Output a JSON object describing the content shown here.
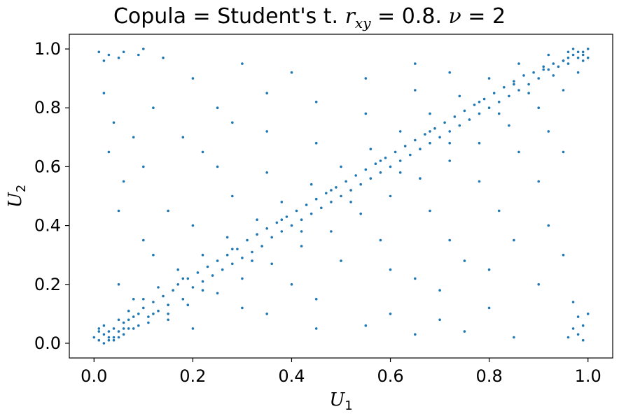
{
  "chart_data": {
    "type": "scatter",
    "title": {
      "prefix": "Copula = Student's t. ",
      "r_symbol": "r",
      "r_subscript": "xy",
      "r_value": " = 0.8. ",
      "nu_symbol": "ν",
      "nu_value": " = 2"
    },
    "xlabel": {
      "symbol": "U",
      "subscript": "1"
    },
    "ylabel": {
      "symbol": "U",
      "subscript": "2"
    },
    "xlim": [
      -0.05,
      1.05
    ],
    "ylim": [
      -0.05,
      1.05
    ],
    "xticks": [
      0.0,
      0.2,
      0.4,
      0.6,
      0.8,
      1.0
    ],
    "yticks": [
      0.0,
      0.2,
      0.4,
      0.6,
      0.8,
      1.0
    ],
    "tick_labels": [
      "0.0",
      "0.2",
      "0.4",
      "0.6",
      "0.8",
      "1.0"
    ],
    "grid": false,
    "marker_color": "#1f77b4",
    "points": [
      [
        0.01,
        0.01
      ],
      [
        0.02,
        0.03
      ],
      [
        0.03,
        0.02
      ],
      [
        0.04,
        0.05
      ],
      [
        0.05,
        0.04
      ],
      [
        0.06,
        0.07
      ],
      [
        0.07,
        0.05
      ],
      [
        0.08,
        0.09
      ],
      [
        0.09,
        0.1
      ],
      [
        0.1,
        0.12
      ],
      [
        0.11,
        0.09
      ],
      [
        0.12,
        0.14
      ],
      [
        0.13,
        0.11
      ],
      [
        0.14,
        0.16
      ],
      [
        0.15,
        0.13
      ],
      [
        0.16,
        0.18
      ],
      [
        0.17,
        0.2
      ],
      [
        0.18,
        0.15
      ],
      [
        0.19,
        0.22
      ],
      [
        0.2,
        0.19
      ],
      [
        0.21,
        0.24
      ],
      [
        0.22,
        0.21
      ],
      [
        0.23,
        0.26
      ],
      [
        0.24,
        0.23
      ],
      [
        0.25,
        0.28
      ],
      [
        0.26,
        0.25
      ],
      [
        0.27,
        0.3
      ],
      [
        0.28,
        0.27
      ],
      [
        0.29,
        0.32
      ],
      [
        0.3,
        0.29
      ],
      [
        0.31,
        0.35
      ],
      [
        0.32,
        0.31
      ],
      [
        0.33,
        0.37
      ],
      [
        0.34,
        0.33
      ],
      [
        0.35,
        0.39
      ],
      [
        0.36,
        0.36
      ],
      [
        0.37,
        0.41
      ],
      [
        0.38,
        0.38
      ],
      [
        0.39,
        0.43
      ],
      [
        0.4,
        0.4
      ],
      [
        0.41,
        0.45
      ],
      [
        0.42,
        0.42
      ],
      [
        0.43,
        0.47
      ],
      [
        0.44,
        0.44
      ],
      [
        0.45,
        0.49
      ],
      [
        0.46,
        0.46
      ],
      [
        0.47,
        0.51
      ],
      [
        0.48,
        0.48
      ],
      [
        0.49,
        0.53
      ],
      [
        0.5,
        0.5
      ],
      [
        0.51,
        0.55
      ],
      [
        0.52,
        0.52
      ],
      [
        0.53,
        0.57
      ],
      [
        0.54,
        0.54
      ],
      [
        0.55,
        0.59
      ],
      [
        0.56,
        0.56
      ],
      [
        0.57,
        0.61
      ],
      [
        0.58,
        0.58
      ],
      [
        0.59,
        0.63
      ],
      [
        0.6,
        0.6
      ],
      [
        0.61,
        0.65
      ],
      [
        0.62,
        0.62
      ],
      [
        0.63,
        0.67
      ],
      [
        0.64,
        0.64
      ],
      [
        0.65,
        0.69
      ],
      [
        0.66,
        0.66
      ],
      [
        0.67,
        0.71
      ],
      [
        0.68,
        0.68
      ],
      [
        0.69,
        0.73
      ],
      [
        0.7,
        0.7
      ],
      [
        0.71,
        0.75
      ],
      [
        0.72,
        0.72
      ],
      [
        0.73,
        0.77
      ],
      [
        0.74,
        0.74
      ],
      [
        0.75,
        0.79
      ],
      [
        0.76,
        0.76
      ],
      [
        0.77,
        0.81
      ],
      [
        0.78,
        0.78
      ],
      [
        0.79,
        0.83
      ],
      [
        0.8,
        0.8
      ],
      [
        0.81,
        0.85
      ],
      [
        0.82,
        0.82
      ],
      [
        0.83,
        0.87
      ],
      [
        0.84,
        0.84
      ],
      [
        0.85,
        0.89
      ],
      [
        0.86,
        0.86
      ],
      [
        0.87,
        0.91
      ],
      [
        0.88,
        0.88
      ],
      [
        0.89,
        0.92
      ],
      [
        0.9,
        0.9
      ],
      [
        0.91,
        0.94
      ],
      [
        0.92,
        0.93
      ],
      [
        0.93,
        0.95
      ],
      [
        0.94,
        0.94
      ],
      [
        0.95,
        0.96
      ],
      [
        0.96,
        0.97
      ],
      [
        0.97,
        0.98
      ],
      [
        0.98,
        0.97
      ],
      [
        0.99,
        0.99
      ],
      [
        1.0,
        1.0
      ],
      [
        0.02,
        0.0
      ],
      [
        0.0,
        0.02
      ],
      [
        0.03,
        0.01
      ],
      [
        0.01,
        0.04
      ],
      [
        0.04,
        0.02
      ],
      [
        0.02,
        0.06
      ],
      [
        0.06,
        0.03
      ],
      [
        0.05,
        0.08
      ],
      [
        0.08,
        0.05
      ],
      [
        0.07,
        0.11
      ],
      [
        0.11,
        0.07
      ],
      [
        0.1,
        0.15
      ],
      [
        0.15,
        0.1
      ],
      [
        0.13,
        0.19
      ],
      [
        0.19,
        0.13
      ],
      [
        0.17,
        0.25
      ],
      [
        0.25,
        0.17
      ],
      [
        0.22,
        0.3
      ],
      [
        0.3,
        0.22
      ],
      [
        0.27,
        0.36
      ],
      [
        0.36,
        0.27
      ],
      [
        0.33,
        0.42
      ],
      [
        0.42,
        0.33
      ],
      [
        0.38,
        0.48
      ],
      [
        0.48,
        0.38
      ],
      [
        0.44,
        0.54
      ],
      [
        0.54,
        0.44
      ],
      [
        0.5,
        0.6
      ],
      [
        0.6,
        0.5
      ],
      [
        0.56,
        0.66
      ],
      [
        0.66,
        0.56
      ],
      [
        0.62,
        0.72
      ],
      [
        0.72,
        0.62
      ],
      [
        0.68,
        0.78
      ],
      [
        0.78,
        0.68
      ],
      [
        0.74,
        0.84
      ],
      [
        0.84,
        0.74
      ],
      [
        0.8,
        0.9
      ],
      [
        0.9,
        0.8
      ],
      [
        0.86,
        0.95
      ],
      [
        0.95,
        0.86
      ],
      [
        0.92,
        0.98
      ],
      [
        0.98,
        0.92
      ],
      [
        0.97,
        1.0
      ],
      [
        1.0,
        0.97
      ],
      [
        0.99,
        0.96
      ],
      [
        0.96,
        0.99
      ],
      [
        0.12,
        0.3
      ],
      [
        0.3,
        0.12
      ],
      [
        0.2,
        0.4
      ],
      [
        0.4,
        0.2
      ],
      [
        0.28,
        0.5
      ],
      [
        0.5,
        0.28
      ],
      [
        0.35,
        0.58
      ],
      [
        0.58,
        0.35
      ],
      [
        0.45,
        0.68
      ],
      [
        0.68,
        0.45
      ],
      [
        0.55,
        0.78
      ],
      [
        0.78,
        0.55
      ],
      [
        0.65,
        0.86
      ],
      [
        0.86,
        0.65
      ],
      [
        0.72,
        0.92
      ],
      [
        0.92,
        0.72
      ],
      [
        0.05,
        0.2
      ],
      [
        0.2,
        0.05
      ],
      [
        0.1,
        0.35
      ],
      [
        0.35,
        0.1
      ],
      [
        0.15,
        0.45
      ],
      [
        0.45,
        0.15
      ],
      [
        0.25,
        0.6
      ],
      [
        0.6,
        0.25
      ],
      [
        0.35,
        0.72
      ],
      [
        0.72,
        0.35
      ],
      [
        0.45,
        0.82
      ],
      [
        0.82,
        0.45
      ],
      [
        0.55,
        0.9
      ],
      [
        0.9,
        0.55
      ],
      [
        0.65,
        0.95
      ],
      [
        0.95,
        0.65
      ],
      [
        0.01,
        0.99
      ],
      [
        0.03,
        0.98
      ],
      [
        0.05,
        0.97
      ],
      [
        0.02,
        0.96
      ],
      [
        0.06,
        0.99
      ],
      [
        0.09,
        0.98
      ],
      [
        0.1,
        1.0
      ],
      [
        0.14,
        0.97
      ],
      [
        0.99,
        0.01
      ],
      [
        0.98,
        0.03
      ],
      [
        0.97,
        0.05
      ],
      [
        0.96,
        0.02
      ],
      [
        0.99,
        0.06
      ],
      [
        0.98,
        0.09
      ],
      [
        1.0,
        0.1
      ],
      [
        0.97,
        0.14
      ],
      [
        0.02,
        0.85
      ],
      [
        0.04,
        0.75
      ],
      [
        0.03,
        0.65
      ],
      [
        0.06,
        0.55
      ],
      [
        0.08,
        0.7
      ],
      [
        0.05,
        0.45
      ],
      [
        0.12,
        0.8
      ],
      [
        0.1,
        0.6
      ],
      [
        0.85,
        0.02
      ],
      [
        0.75,
        0.04
      ],
      [
        0.65,
        0.03
      ],
      [
        0.55,
        0.06
      ],
      [
        0.7,
        0.08
      ],
      [
        0.45,
        0.05
      ],
      [
        0.8,
        0.12
      ],
      [
        0.6,
        0.1
      ],
      [
        0.2,
        0.9
      ],
      [
        0.25,
        0.8
      ],
      [
        0.3,
        0.95
      ],
      [
        0.18,
        0.7
      ],
      [
        0.35,
        0.85
      ],
      [
        0.4,
        0.92
      ],
      [
        0.28,
        0.75
      ],
      [
        0.22,
        0.65
      ],
      [
        0.9,
        0.2
      ],
      [
        0.8,
        0.25
      ],
      [
        0.95,
        0.3
      ],
      [
        0.7,
        0.18
      ],
      [
        0.85,
        0.35
      ],
      [
        0.92,
        0.4
      ],
      [
        0.75,
        0.28
      ],
      [
        0.65,
        0.22
      ],
      [
        0.15,
        0.08
      ],
      [
        0.08,
        0.15
      ],
      [
        0.22,
        0.18
      ],
      [
        0.18,
        0.22
      ],
      [
        0.32,
        0.28
      ],
      [
        0.28,
        0.32
      ],
      [
        0.42,
        0.38
      ],
      [
        0.38,
        0.42
      ],
      [
        0.52,
        0.48
      ],
      [
        0.48,
        0.52
      ],
      [
        0.62,
        0.58
      ],
      [
        0.58,
        0.62
      ],
      [
        0.72,
        0.68
      ],
      [
        0.68,
        0.72
      ],
      [
        0.82,
        0.78
      ],
      [
        0.78,
        0.82
      ],
      [
        0.88,
        0.85
      ],
      [
        0.85,
        0.88
      ],
      [
        0.93,
        0.91
      ],
      [
        0.91,
        0.93
      ],
      [
        0.96,
        0.95
      ],
      [
        0.95,
        0.96
      ],
      [
        0.98,
        0.99
      ],
      [
        0.99,
        0.98
      ],
      [
        0.04,
        0.01
      ],
      [
        0.01,
        0.05
      ],
      [
        0.03,
        0.04
      ],
      [
        0.06,
        0.05
      ],
      [
        0.05,
        0.02
      ],
      [
        0.07,
        0.08
      ],
      [
        0.09,
        0.06
      ],
      [
        0.12,
        0.1
      ]
    ]
  }
}
